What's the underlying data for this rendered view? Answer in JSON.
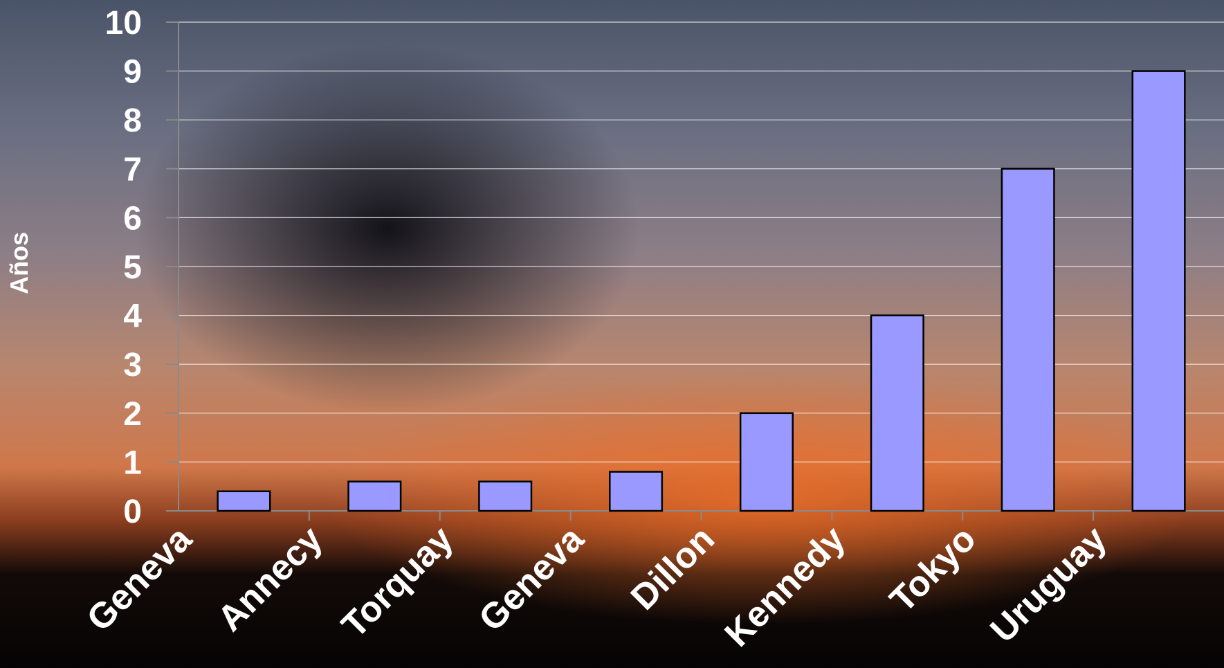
{
  "chart_data": {
    "type": "bar",
    "title": "",
    "xlabel": "",
    "ylabel": "Años",
    "ylim": [
      0,
      10
    ],
    "yticks": [
      "0",
      "1",
      "2",
      "3",
      "4",
      "5",
      "6",
      "7",
      "8",
      "9",
      "10"
    ],
    "grid": true,
    "legend": "none",
    "categories": [
      "Geneva",
      "Annecy",
      "Torquay",
      "Geneva",
      "Dillon",
      "Kennedy",
      "Tokyo",
      "Uruguay"
    ],
    "values": [
      0.4,
      0.6,
      0.6,
      0.8,
      2,
      4,
      7,
      9
    ],
    "colors": {
      "bar_fill": "#9999ff",
      "bar_stroke": "#000000",
      "gridline": "#ffffff",
      "axis": "#8a8a8a",
      "text": "#ffffff"
    }
  }
}
